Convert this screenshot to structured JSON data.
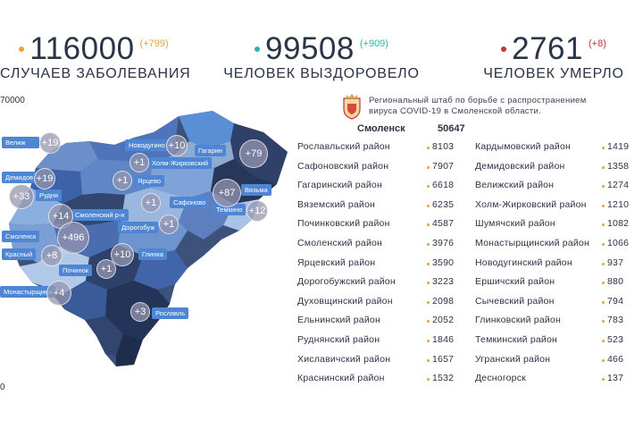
{
  "stats": {
    "cases": {
      "value": "116000",
      "delta": "(+799)",
      "caption": "Случаев заболевания",
      "dot_color": "#e8a23a",
      "delta_color": "#e8a23a"
    },
    "recovered": {
      "value": "99508",
      "delta": "(+909)",
      "caption": "Человек выздоровело",
      "dot_color": "#2bb5b0",
      "delta_color": "#2bb5b0"
    },
    "died": {
      "value": "2761",
      "delta": "(+8)",
      "caption": "Человек умерло",
      "dot_color": "#c0392b",
      "delta_color": "#c0392b"
    }
  },
  "axis": {
    "top_label": "70000",
    "bottom_label": "0"
  },
  "hq": {
    "line1": "Региональный штаб по борьбе с распространением",
    "line2": "вируса COVID-19 в Смоленской области."
  },
  "city": {
    "name": "Смоленск",
    "value": "50647"
  },
  "districts_left": [
    {
      "name": "Рославльский район",
      "value": "8103"
    },
    {
      "name": "Сафоновский район",
      "value": "7907"
    },
    {
      "name": "Гагаринский район",
      "value": "6618"
    },
    {
      "name": "Вяземский район",
      "value": "6235"
    },
    {
      "name": "Починковский район",
      "value": "4587"
    },
    {
      "name": "Смоленский район",
      "value": "3976"
    },
    {
      "name": "Ярцевский район",
      "value": "3590"
    },
    {
      "name": "Дорогобужский район",
      "value": "3223"
    },
    {
      "name": "Духовщинский район",
      "value": "2098"
    },
    {
      "name": "Ельнинский район",
      "value": "2052"
    },
    {
      "name": "Руднянский район",
      "value": "1846"
    },
    {
      "name": "Хиславичский район",
      "value": "1657"
    },
    {
      "name": "Краснинский район",
      "value": "1532"
    }
  ],
  "districts_right": [
    {
      "name": "Кардымовский район",
      "value": "1419"
    },
    {
      "name": "Демидовский район",
      "value": "1358"
    },
    {
      "name": "Велижский район",
      "value": "1274"
    },
    {
      "name": "Холм-Жирковский район",
      "value": "1210"
    },
    {
      "name": "Шумячский район",
      "value": "1082"
    },
    {
      "name": "Монастырщинский район",
      "value": "1066"
    },
    {
      "name": "Новодугинский район",
      "value": "937"
    },
    {
      "name": "Ершичский район",
      "value": "880"
    },
    {
      "name": "Сычевский район",
      "value": "794"
    },
    {
      "name": "Глинковский район",
      "value": "783"
    },
    {
      "name": "Темкинский район",
      "value": "523"
    },
    {
      "name": "Угранский район",
      "value": "466"
    },
    {
      "name": "Десногорск",
      "value": "137"
    }
  ],
  "map_labels": {
    "velizh": "Велиж",
    "novodugino": "Новодугино",
    "gagarin": "Гагарин",
    "kholm": "Холм-Жирковский",
    "demidov": "Демидов",
    "rudnya": "Рудня",
    "yartsevo": "Ярцево",
    "safonovo": "Сафоново",
    "vyazma": "Вязьма",
    "smolensk_rn": "Смоленский р-н",
    "dorogobuzh": "Дорогобуж",
    "temkino": "Темкино",
    "smolensk": "Смоленск",
    "glinka": "Глинка",
    "krasny": "Красный",
    "pochinok": "Починок",
    "monastyrshchina": "Монастырщина",
    "roslavl": "Рославль"
  },
  "map_increments": {
    "velizh": "+19",
    "novodugino": "+10",
    "gagarin": "+79",
    "kholm": "+1",
    "demidov": "+19",
    "yartsevo": "+1",
    "rudnya": "+33",
    "vyazma": "+87",
    "smolensk_rn": "+14",
    "safonovo": "+1",
    "dorogobuzh": "+1",
    "temkino": "+12",
    "smolensk": "+496",
    "krasny": "+8",
    "glinka": "+10",
    "pochinok": "+1",
    "monastyrshchina": "+4",
    "roslavl": "+3"
  },
  "colors": {
    "accent_orange": "#e8a23a",
    "accent_teal": "#2bb5b0",
    "accent_red": "#c0392b",
    "label_blue": "#4e86d4"
  }
}
